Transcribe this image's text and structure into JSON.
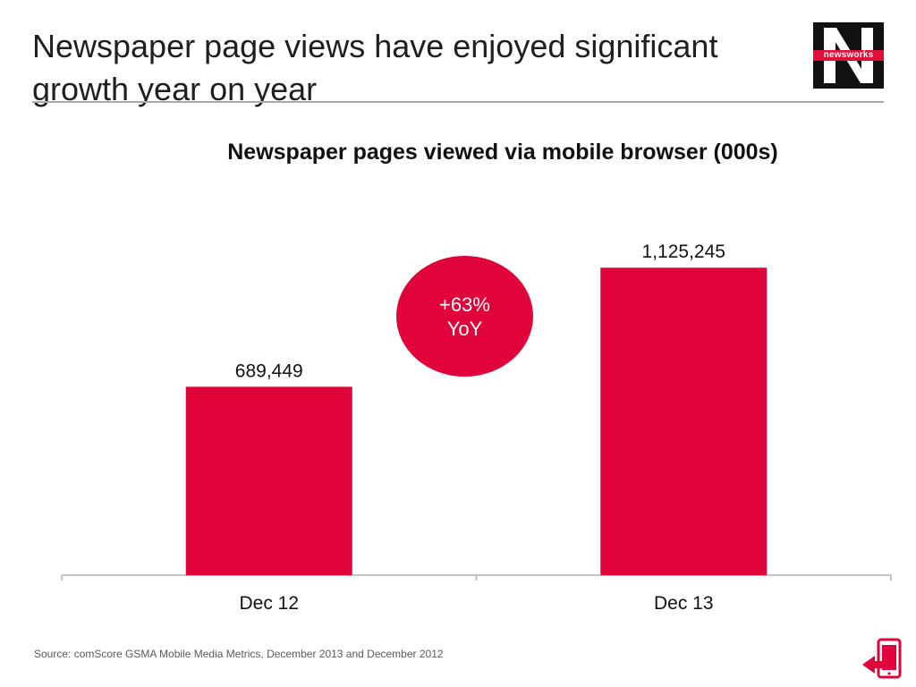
{
  "slide": {
    "title": "Newspaper page views have enjoyed significant growth year on year",
    "logo_text": "newsworks",
    "source": "Source: comScore GSMA Mobile Media Metrics, December 2013 and December 2012"
  },
  "callout": {
    "line1": "+63%",
    "line2": "YoY"
  },
  "colors": {
    "bar": "#e0043a",
    "axis": "#b0b0b0",
    "rule": "#a9a9a9",
    "logo_bg": "#111111",
    "logo_band": "#e0103a"
  },
  "icons": {
    "corner": "mobile-device-icon"
  },
  "chart_data": {
    "type": "bar",
    "title": "Newspaper pages viewed via mobile browser (000s)",
    "categories": [
      "Dec 12",
      "Dec 13"
    ],
    "values": [
      689449,
      1125245
    ],
    "value_labels": [
      "689,449",
      "1,125,245"
    ],
    "xlabel": "",
    "ylabel": "",
    "ylim": [
      0,
      1450000
    ],
    "grid": false,
    "legend": "none"
  }
}
